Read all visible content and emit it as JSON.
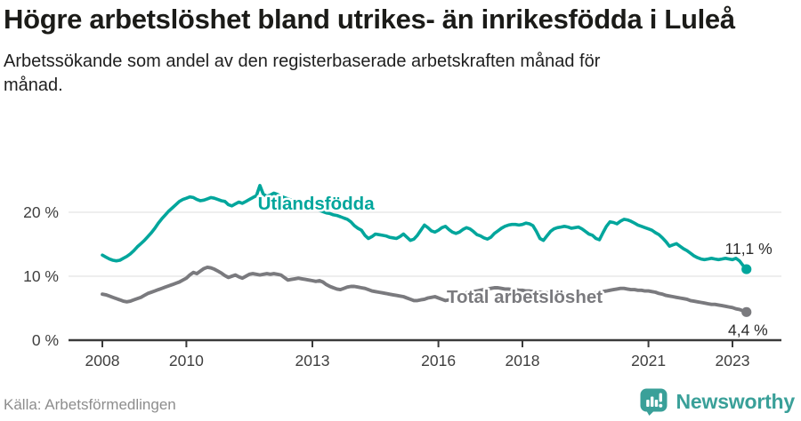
{
  "header": {
    "title": "Högre arbetslöshet bland utrikes- än inrikesfödda i Luleå",
    "subtitle": "Arbetssökande som andel av den registerbaserade arbetskraften månad för månad."
  },
  "footer": {
    "source": "Källa: Arbetsförmedlingen",
    "brand": "Newsworthy",
    "brand_icon": "newsworthy-speech-bubble-bar-chart"
  },
  "colors": {
    "teal": "#00A69C",
    "gray": "#7A7A7E",
    "axis": "#3A3A3A",
    "grid": "#E3E3E3",
    "tick_text": "#3F3F3F",
    "value_label": "#2B2B2B",
    "source": "#8D8D8D",
    "brand": "#3AA099"
  },
  "chart_data": {
    "type": "line",
    "title": "Högre arbetslöshet bland utrikes- än inrikesfödda i Luleå",
    "xlabel": "",
    "ylabel": "",
    "unit": "%",
    "x_start": {
      "year": 2008,
      "month": 1
    },
    "x_step": "month",
    "x_end": {
      "year": 2023,
      "month": 5
    },
    "ylim": [
      0,
      25.5
    ],
    "xlim_years": [
      2007.2,
      2024.2
    ],
    "grid": "horizontal",
    "legend_position": "inline-labels",
    "y_ticks": [
      {
        "value": 0,
        "label": "0 %"
      },
      {
        "value": 10,
        "label": "10 %"
      },
      {
        "value": 20,
        "label": "20 %"
      }
    ],
    "x_ticks": [
      {
        "year": 2008,
        "label": "2008"
      },
      {
        "year": 2010,
        "label": "2010"
      },
      {
        "year": 2013,
        "label": "2013"
      },
      {
        "year": 2016,
        "label": "2016"
      },
      {
        "year": 2018,
        "label": "2018"
      },
      {
        "year": 2021,
        "label": "2021"
      },
      {
        "year": 2023,
        "label": "2023"
      }
    ],
    "series": [
      {
        "name": "Utlandsfödda",
        "color_key": "teal",
        "end_label": "11,1 %",
        "end_label_side": "above",
        "end_dot": true,
        "annotation": {
          "text": "Utlandsfödda",
          "year": 2011.7,
          "value": 20.4
        },
        "values": [
          13.3,
          13.0,
          12.7,
          12.5,
          12.4,
          12.5,
          12.8,
          13.1,
          13.5,
          14.0,
          14.6,
          15.1,
          15.6,
          16.2,
          16.8,
          17.5,
          18.3,
          19.0,
          19.6,
          20.2,
          20.7,
          21.2,
          21.7,
          22.0,
          22.2,
          22.4,
          22.3,
          22.0,
          21.8,
          21.9,
          22.1,
          22.3,
          22.2,
          22.0,
          21.8,
          21.7,
          21.2,
          21.0,
          21.3,
          21.6,
          21.4,
          21.7,
          22.0,
          22.3,
          22.6,
          24.2,
          22.8,
          22.5,
          22.7,
          23.0,
          22.8,
          22.5,
          22.3,
          22.1,
          21.9,
          21.7,
          21.5,
          21.3,
          21.1,
          20.9,
          20.7,
          20.5,
          20.3,
          20.1,
          19.9,
          19.8,
          19.6,
          19.5,
          19.3,
          19.1,
          18.9,
          18.5,
          17.9,
          17.5,
          17.2,
          16.4,
          15.9,
          16.2,
          16.6,
          16.5,
          16.4,
          16.3,
          16.1,
          16.0,
          15.9,
          16.2,
          16.6,
          16.1,
          15.6,
          15.8,
          16.4,
          17.2,
          18.0,
          17.6,
          17.1,
          16.9,
          17.2,
          17.6,
          17.8,
          17.3,
          16.9,
          16.7,
          16.9,
          17.3,
          17.6,
          17.4,
          17.0,
          16.5,
          16.3,
          16.0,
          15.8,
          16.1,
          16.7,
          17.1,
          17.5,
          17.8,
          18.0,
          18.1,
          18.1,
          18.0,
          18.1,
          18.3,
          18.2,
          17.9,
          17.0,
          15.9,
          15.6,
          16.3,
          17.0,
          17.4,
          17.6,
          17.7,
          17.8,
          17.7,
          17.5,
          17.6,
          17.7,
          17.4,
          17.0,
          16.6,
          16.4,
          15.9,
          15.7,
          16.8,
          17.8,
          18.5,
          18.4,
          18.2,
          18.6,
          18.9,
          18.8,
          18.6,
          18.3,
          18.0,
          17.8,
          17.6,
          17.4,
          17.2,
          16.8,
          16.5,
          16.0,
          15.4,
          14.7,
          14.9,
          15.1,
          14.7,
          14.3,
          14.0,
          13.6,
          13.2,
          12.9,
          12.7,
          12.6,
          12.7,
          12.8,
          12.7,
          12.6,
          12.7,
          12.8,
          12.7,
          12.6,
          12.8,
          12.4,
          11.7,
          11.1
        ]
      },
      {
        "name": "Total arbetslöshet",
        "color_key": "gray",
        "end_label": "4,4 %",
        "end_label_side": "below",
        "end_dot": true,
        "annotation": {
          "text": "Total arbetslöshet",
          "year": 2016.2,
          "value": 5.8
        },
        "values": [
          7.2,
          7.1,
          6.9,
          6.7,
          6.5,
          6.3,
          6.1,
          6.0,
          6.1,
          6.3,
          6.5,
          6.7,
          7.0,
          7.3,
          7.5,
          7.7,
          7.9,
          8.1,
          8.3,
          8.5,
          8.7,
          8.9,
          9.1,
          9.4,
          9.7,
          10.2,
          10.6,
          10.4,
          10.8,
          11.2,
          11.4,
          11.3,
          11.1,
          10.8,
          10.5,
          10.1,
          9.8,
          10.0,
          10.2,
          9.9,
          9.7,
          10.0,
          10.3,
          10.4,
          10.3,
          10.2,
          10.3,
          10.4,
          10.3,
          10.4,
          10.3,
          10.2,
          9.8,
          9.4,
          9.5,
          9.6,
          9.7,
          9.6,
          9.5,
          9.4,
          9.3,
          9.2,
          9.3,
          9.1,
          8.7,
          8.4,
          8.2,
          8.0,
          7.9,
          8.1,
          8.3,
          8.4,
          8.4,
          8.3,
          8.2,
          8.1,
          7.9,
          7.7,
          7.6,
          7.5,
          7.4,
          7.3,
          7.2,
          7.1,
          7.0,
          6.9,
          6.8,
          6.6,
          6.4,
          6.2,
          6.2,
          6.3,
          6.4,
          6.6,
          6.7,
          6.8,
          6.6,
          6.4,
          6.2,
          6.3,
          6.5,
          6.8,
          7.0,
          7.2,
          7.4,
          7.5,
          7.6,
          7.7,
          7.8,
          7.9,
          8.0,
          8.1,
          8.2,
          8.2,
          8.1,
          8.0,
          8.0,
          7.9,
          7.9,
          7.8,
          7.8,
          7.7,
          7.7,
          7.6,
          7.5,
          7.5,
          7.4,
          7.4,
          7.3,
          7.3,
          7.2,
          7.2,
          7.2,
          7.1,
          7.1,
          7.0,
          7.0,
          7.1,
          7.1,
          7.2,
          7.3,
          7.4,
          7.5,
          7.6,
          7.7,
          7.8,
          7.9,
          8.0,
          8.1,
          8.1,
          8.0,
          7.9,
          7.9,
          7.8,
          7.8,
          7.7,
          7.7,
          7.6,
          7.5,
          7.3,
          7.2,
          7.0,
          6.9,
          6.8,
          6.7,
          6.6,
          6.5,
          6.4,
          6.2,
          6.1,
          6.0,
          5.9,
          5.8,
          5.7,
          5.6,
          5.6,
          5.5,
          5.4,
          5.3,
          5.2,
          5.1,
          4.9,
          4.8,
          4.6,
          4.4
        ]
      }
    ]
  }
}
